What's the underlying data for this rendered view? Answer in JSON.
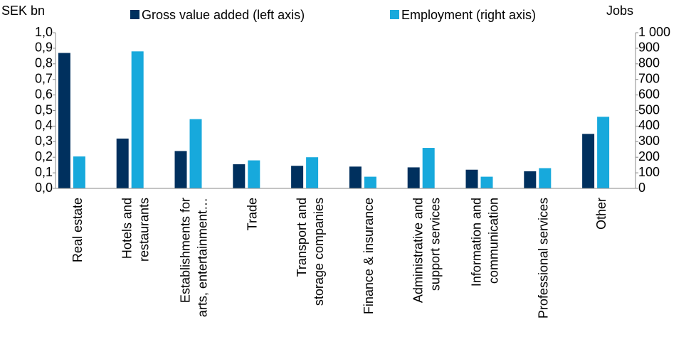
{
  "chart_data": {
    "type": "bar",
    "y_label": "SEK bn",
    "y2_label": "Jobs",
    "categories": [
      "Real estate",
      "Hotels and\nrestaurants",
      "Establishments for\narts, entertainment…",
      "Trade",
      "Transport and\nstorage companies",
      "Finance & insurance",
      "Administrative and\nsupport services",
      "Information and\ncommunication",
      "Professional services",
      "Other"
    ],
    "series": [
      {
        "name": "Gross value added (left axis)",
        "color": "#00305e",
        "values": [
          0.87,
          0.32,
          0.24,
          0.155,
          0.145,
          0.14,
          0.135,
          0.12,
          0.11,
          0.35
        ]
      },
      {
        "name": "Employment (right axis)",
        "color": "#17a9dc",
        "axis": "y2",
        "values": [
          205,
          880,
          445,
          180,
          200,
          75,
          260,
          75,
          130,
          460
        ]
      }
    ],
    "ylim": [
      0,
      1.0
    ],
    "yticks": [
      {
        "value": 0,
        "label": "0,0"
      },
      {
        "value": 0.1,
        "label": "0,1"
      },
      {
        "value": 0.2,
        "label": "0,2"
      },
      {
        "value": 0.3,
        "label": "0,3"
      },
      {
        "value": 0.4,
        "label": "0,4"
      },
      {
        "value": 0.5,
        "label": "0,5"
      },
      {
        "value": 0.6,
        "label": "0,6"
      },
      {
        "value": 0.7,
        "label": "0,7"
      },
      {
        "value": 0.8,
        "label": "0,8"
      },
      {
        "value": 0.9,
        "label": "0,9"
      },
      {
        "value": 1.0,
        "label": "1,0"
      }
    ],
    "y2lim": [
      0,
      1000
    ],
    "y2ticks": [
      0,
      100,
      200,
      300,
      400,
      500,
      600,
      700,
      800,
      900,
      {
        "value": 1000,
        "label": "1 000"
      }
    ],
    "legend": "top"
  }
}
